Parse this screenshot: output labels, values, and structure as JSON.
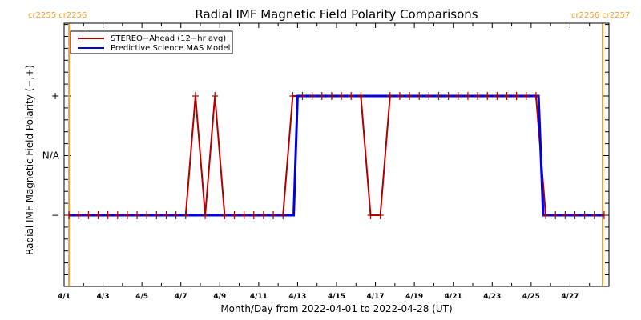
{
  "chart_data": {
    "type": "line",
    "title": "Radial IMF Magnetic Field Polarity Comparisons",
    "xlabel": "Month/Day from 2022-04-01 to 2022-04-28 (UT)",
    "ylabel": "Radial IMF Magnetic Field Polarity (−,+)",
    "x_unit": "days since 2022-04-01 00:00 UT",
    "xlim": [
      0,
      28
    ],
    "ylim": [
      -2,
      2
    ],
    "x_ticks": [
      {
        "value": 0,
        "label": "4/1"
      },
      {
        "value": 2,
        "label": "4/3"
      },
      {
        "value": 4,
        "label": "4/5"
      },
      {
        "value": 6,
        "label": "4/7"
      },
      {
        "value": 8,
        "label": "4/9"
      },
      {
        "value": 10,
        "label": "4/11"
      },
      {
        "value": 12,
        "label": "4/13"
      },
      {
        "value": 14,
        "label": "4/15"
      },
      {
        "value": 16,
        "label": "4/17"
      },
      {
        "value": 18,
        "label": "4/19"
      },
      {
        "value": 20,
        "label": "4/21"
      },
      {
        "value": 22,
        "label": "4/23"
      },
      {
        "value": 24,
        "label": "4/25"
      },
      {
        "value": 26,
        "label": "4/27"
      }
    ],
    "x_minor_step": 1,
    "y_ticks": [
      {
        "value": 1,
        "label": "+"
      },
      {
        "value": 0,
        "label": "N/A"
      },
      {
        "value": -1,
        "label": "−"
      }
    ],
    "y_minor_step": 0.2,
    "grid": false,
    "legend_position": "top-left",
    "carrington_markers": [
      {
        "x": 0.25,
        "label": "cr2255 cr2256",
        "color": "#f5a030"
      },
      {
        "x": 27.67,
        "label": "cr2256 cr2257",
        "color": "#f5a030"
      }
    ],
    "series": [
      {
        "name": "STEREO−Ahead (12−hr avg)",
        "color": "#b00000",
        "style": "markers-plus",
        "x_start": 0.25,
        "x_step": 0.5,
        "values": [
          -1,
          -1,
          -1,
          -1,
          -1,
          -1,
          -1,
          -1,
          -1,
          -1,
          -1,
          -1,
          -1,
          1,
          -1,
          1,
          -1,
          -1,
          -1,
          -1,
          -1,
          -1,
          -1,
          1,
          1,
          1,
          1,
          1,
          1,
          1,
          1,
          -1,
          -1,
          1,
          1,
          1,
          1,
          1,
          1,
          1,
          1,
          1,
          1,
          1,
          1,
          1,
          1,
          1,
          1,
          -1,
          -1,
          -1,
          -1,
          -1,
          -1,
          -1
        ]
      },
      {
        "name": "Predictive Science MAS Model",
        "color": "#0000e0",
        "style": "line",
        "x": [
          0.25,
          11.8,
          12.0,
          24.38,
          24.62,
          27.75
        ],
        "values": [
          -1,
          -1,
          1,
          1,
          -1,
          -1
        ]
      }
    ]
  }
}
